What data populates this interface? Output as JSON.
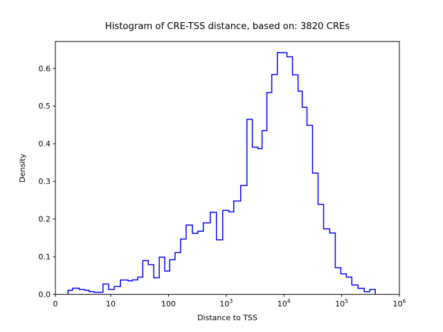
{
  "figure": {
    "background": "#ffffff"
  },
  "chart_data": {
    "type": "bar",
    "subtype": "step-histogram",
    "title": "Histogram of CRE-TSS distance, based on: 3820 CREs",
    "xlabel": "Distance to TSS",
    "ylabel": "Density",
    "sample_size": 3820,
    "line_color": "#0000ff",
    "axis_color": "#000000",
    "x_scale": "symlog",
    "x_linear_threshold": 10,
    "xlim": [
      0,
      1000000
    ],
    "ylim": [
      0,
      0.67
    ],
    "grid": false,
    "legend": "none",
    "x_ticks": [
      {
        "value": 0,
        "label": "0",
        "exp": ""
      },
      {
        "value": 10,
        "label": "10",
        "exp": ""
      },
      {
        "value": 100,
        "label": "100",
        "exp": ""
      },
      {
        "value": 1000,
        "label": "10",
        "exp": "3"
      },
      {
        "value": 10000,
        "label": "10",
        "exp": "4"
      },
      {
        "value": 100000,
        "label": "10",
        "exp": "5"
      },
      {
        "value": 1000000,
        "label": "10",
        "exp": "6"
      }
    ],
    "y_ticks": [
      {
        "value": 0.0,
        "label": "0.0"
      },
      {
        "value": 0.1,
        "label": "0.1"
      },
      {
        "value": 0.2,
        "label": "0.2"
      },
      {
        "value": 0.3,
        "label": "0.3"
      },
      {
        "value": 0.4,
        "label": "0.4"
      },
      {
        "value": 0.5,
        "label": "0.5"
      },
      {
        "value": 0.6,
        "label": "0.6"
      }
    ],
    "bin_edges": [
      2.3,
      3.1,
      4.3,
      5.3,
      6.1,
      7.0,
      8.6,
      9.6,
      11.5,
      14.7,
      20,
      23.6,
      29.3,
      35.9,
      44.7,
      55.6,
      69.3,
      86.2,
      105,
      130,
      162,
      202,
      259,
      323,
      401,
      529,
      678,
      869,
      1114,
      1350,
      1780,
      2281,
      2843,
      3543,
      4180,
      5074,
      6159,
      7703,
      11300,
      14086,
      17559,
      20710,
      25100,
      31290,
      39006,
      48625,
      62189,
      77524,
      96640,
      120470,
      150175,
      192200,
      246000,
      306716,
      382350
    ],
    "densities": [
      0.011,
      0.0165,
      0.013,
      0.011,
      0.0073,
      0.0055,
      0.0275,
      0.013,
      0.021,
      0.038,
      0.036,
      0.0385,
      0.046,
      0.09,
      0.079,
      0.044,
      0.099,
      0.062,
      0.092,
      0.111,
      0.147,
      0.184,
      0.162,
      0.168,
      0.19,
      0.218,
      0.145,
      0.223,
      0.219,
      0.248,
      0.289,
      0.465,
      0.391,
      0.387,
      0.435,
      0.536,
      0.584,
      0.642,
      0.631,
      0.583,
      0.54,
      0.497,
      0.449,
      0.322,
      0.239,
      0.174,
      0.163,
      0.071,
      0.0545,
      0.046,
      0.025,
      0.016,
      0.007,
      0.013
    ]
  }
}
